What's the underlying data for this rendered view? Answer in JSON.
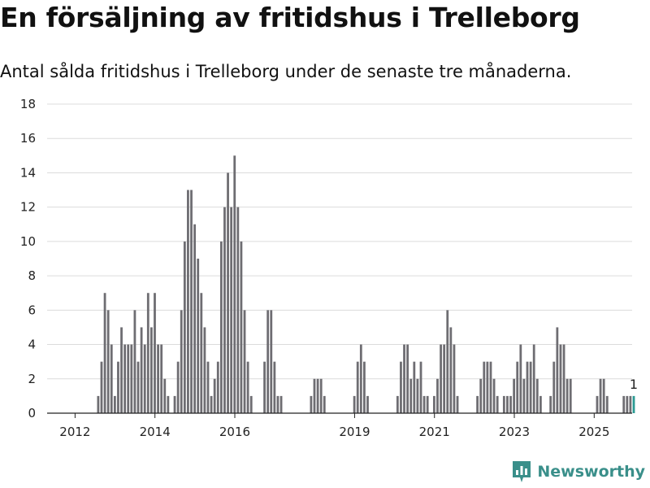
{
  "title": "En försäljning av fritidshus i Trelleborg",
  "subtitle": "Antal sålda fritidshus i Trelleborg under de senaste tre månaderna.",
  "brand": {
    "name": "Newsworthy",
    "icon": "newsworthy-logo-icon"
  },
  "colors": {
    "bar": "#6e6d72",
    "highlight": "#2b9a93",
    "grid": "#dcdcdc",
    "brand": "#3a8f8a"
  },
  "chart_data": {
    "type": "bar",
    "x_start": 2011.83,
    "x_step": 0.0833,
    "values": [
      0,
      0,
      0,
      0,
      0,
      0,
      0,
      0,
      0,
      1,
      3,
      7,
      6,
      4,
      1,
      3,
      5,
      4,
      4,
      4,
      6,
      3,
      5,
      4,
      7,
      5,
      7,
      4,
      4,
      2,
      1,
      0,
      1,
      3,
      6,
      10,
      13,
      13,
      11,
      9,
      7,
      5,
      3,
      1,
      2,
      3,
      10,
      12,
      14,
      12,
      15,
      12,
      10,
      6,
      3,
      1,
      0,
      0,
      0,
      3,
      6,
      6,
      3,
      1,
      1,
      0,
      0,
      0,
      0,
      0,
      0,
      0,
      0,
      1,
      2,
      2,
      2,
      1,
      0,
      0,
      0,
      0,
      0,
      0,
      0,
      0,
      1,
      3,
      4,
      3,
      1,
      0,
      0,
      0,
      0,
      0,
      0,
      0,
      0,
      1,
      3,
      4,
      4,
      2,
      3,
      2,
      3,
      1,
      1,
      0,
      1,
      2,
      4,
      4,
      6,
      5,
      4,
      1,
      0,
      0,
      0,
      0,
      0,
      1,
      2,
      3,
      3,
      3,
      2,
      1,
      0,
      1,
      1,
      1,
      2,
      3,
      4,
      2,
      3,
      3,
      4,
      2,
      1,
      0,
      0,
      1,
      3,
      5,
      4,
      4,
      2,
      2,
      0,
      0,
      0,
      0,
      0,
      0,
      0,
      1,
      2,
      2,
      1,
      0,
      0,
      0,
      0,
      1,
      1,
      1,
      1
    ],
    "highlight_last": true,
    "data_labels": [
      {
        "index": "last",
        "text": "1"
      }
    ],
    "xlim": [
      2011.3,
      2025.95
    ],
    "ylim": [
      0,
      18
    ],
    "y_ticks": [
      0,
      2,
      4,
      6,
      8,
      10,
      12,
      14,
      16,
      18
    ],
    "x_ticks": [
      2012,
      2014,
      2016,
      2019,
      2021,
      2023,
      2025
    ],
    "grid": true,
    "xlabel": "",
    "ylabel": ""
  }
}
